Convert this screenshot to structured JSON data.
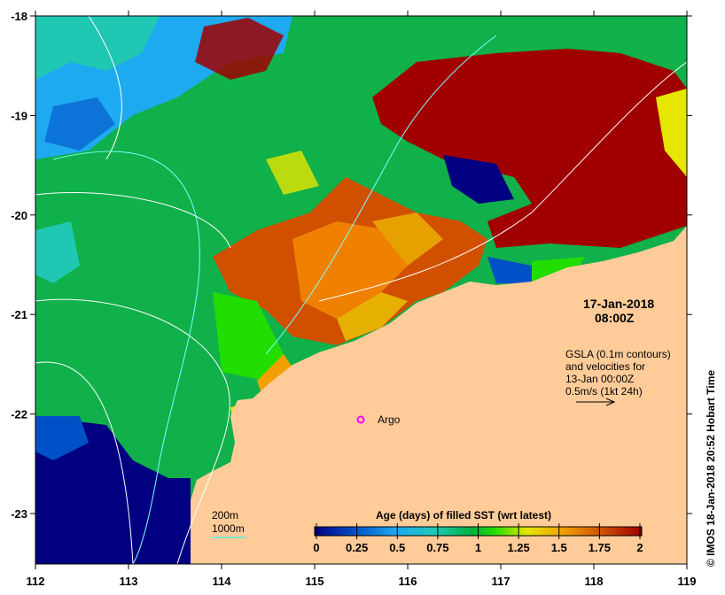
{
  "map": {
    "lon_range": [
      112,
      119
    ],
    "lat_range": [
      -23.5,
      -18
    ],
    "lon_ticks": [
      "112",
      "113",
      "114",
      "115",
      "116",
      "117",
      "118",
      "119"
    ],
    "lat_ticks": [
      "-18",
      "-19",
      "-20",
      "-21",
      "-22",
      "-23"
    ],
    "land_color": "#FFCC99"
  },
  "annotation": {
    "date": "17-Jan-2018",
    "time": "08:00Z",
    "gsla_lines": [
      "GSLA (0.1m contours)",
      "and velocities for",
      "13-Jan 00:00Z",
      "0.5m/s (1kt 24h)"
    ],
    "argo_label": "Argo",
    "credit": "© IMOS 18-Jan-2018 20:52 Hobart Time"
  },
  "contour_legend": {
    "c200": "200m",
    "c1000": "1000m"
  },
  "colorbar": {
    "title": "Age (days) of filled SST (wrt latest)",
    "ticks": [
      "0",
      "0.25",
      "0.5",
      "0.75",
      "1",
      "1.25",
      "1.5",
      "1.75",
      "2"
    ],
    "colors": [
      "#000080",
      "#0050C8",
      "#1EAAF0",
      "#20C8B4",
      "#00B040",
      "#22DD00",
      "#E6E600",
      "#F0A000",
      "#D05000",
      "#A00000"
    ]
  }
}
